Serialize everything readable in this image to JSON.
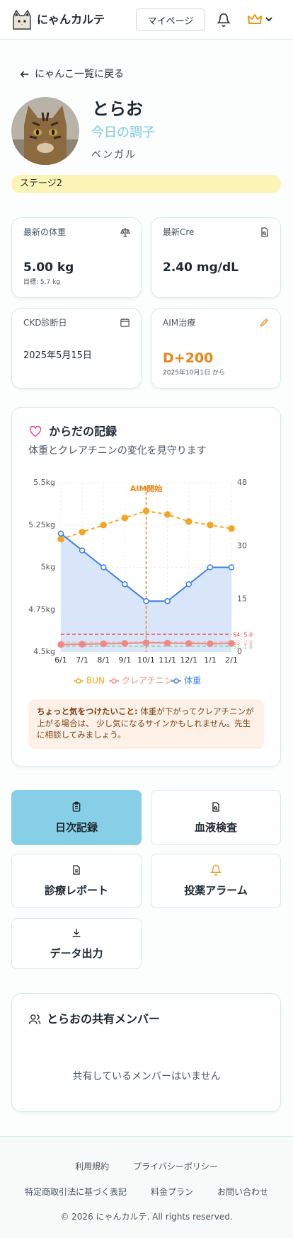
{
  "header": {
    "app_name": "にゃんカルテ",
    "mypage": "マイページ"
  },
  "back_link": "にゃんこ一覧に戻る",
  "cat": {
    "name": "とらお",
    "mood": "今日の調子",
    "breed": "ベンガル",
    "stage": "ステージ2"
  },
  "stats": [
    {
      "label": "最新の体重",
      "value": "5.00 kg",
      "sub": "目標: 5.7 kg"
    },
    {
      "label": "最新Cre",
      "value": "2.40 mg/dL"
    },
    {
      "label": "CKD診断日",
      "value": "2025年5月15日"
    },
    {
      "label": "AIM治療",
      "value": "D+200",
      "sub": "2025年10月1日 から"
    }
  ],
  "chart_data": {
    "type": "line",
    "title": "からだの記録",
    "subtitle": "体重とクレアチニンの変化を見守ります",
    "categories": [
      "6/1",
      "7/1",
      "8/1",
      "9/1",
      "10/1",
      "11/1",
      "12/1",
      "1/1",
      "2/1"
    ],
    "series": [
      {
        "name": "BUN",
        "color": "#f5a524",
        "axis": "y2",
        "dashed": true,
        "values": [
          32,
          34,
          36,
          38,
          40,
          39,
          37,
          36,
          35
        ]
      },
      {
        "name": "クレアチニン",
        "color": "#f08a80",
        "axis": "y2",
        "values": [
          2.1,
          2.2,
          2.3,
          2.4,
          2.6,
          2.5,
          2.4,
          2.3,
          2.4
        ]
      },
      {
        "name": "体重",
        "color": "#3b7fe6",
        "axis": "y",
        "area": true,
        "area_color": "#d5e3fa",
        "values": [
          5.2,
          5.1,
          5.0,
          4.9,
          4.8,
          4.8,
          4.9,
          5.0,
          5.0
        ]
      }
    ],
    "ylim": [
      4.5,
      5.5
    ],
    "yticks": [
      {
        "value": 4.5,
        "label": "4.5kg"
      },
      {
        "value": 4.75,
        "label": "4.75kg"
      },
      {
        "value": 5,
        "label": "5kg"
      },
      {
        "value": 5.25,
        "label": "5.25kg"
      },
      {
        "value": 5.5,
        "label": "5.5kg"
      }
    ],
    "y2lim": [
      0,
      48
    ],
    "y2ticks": [
      0,
      15,
      30,
      48
    ],
    "grid": true,
    "reference_lines": [
      {
        "value": 5.0,
        "label": "S4: 5.0",
        "color": "#ef4444"
      },
      {
        "value": 2.8,
        "label": "S3: 2.8",
        "color": "#f7a8a8"
      },
      {
        "value": 1.6,
        "label": "S2: 1.6",
        "color": "#86c99a"
      }
    ],
    "marker": {
      "category": "10/1",
      "label": "AIM開始",
      "color": "#e8861a"
    },
    "note": {
      "title": "ちょっと気をつけたいこと:",
      "text": "体重が下がってクレアチニンが上がる場合は、 少し気になるサインかもしれません。先生に相談してみましょう。"
    }
  },
  "actions": [
    "日次記録",
    "血液検査",
    "診療レポート",
    "投薬アラーム",
    "データ出力"
  ],
  "members": {
    "title": "とらおの共有メンバー",
    "empty": "共有しているメンバーはいません"
  },
  "footer": {
    "links": [
      "利用規約",
      "プライバシーポリシー",
      "特定商取引法に基づく表記",
      "料金プラン",
      "お問い合わせ"
    ],
    "copyright": "© 2026 にゃんカルテ. All rights reserved."
  }
}
